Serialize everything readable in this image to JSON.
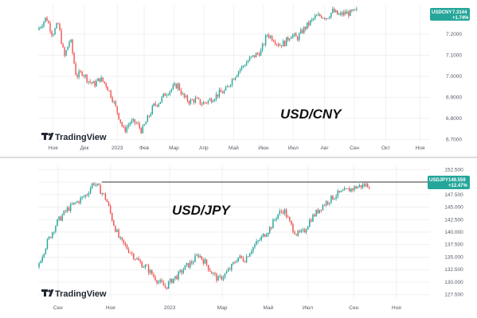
{
  "colors": {
    "up": "#26a69a",
    "down": "#ef5350",
    "badge": "#26a69a",
    "grid": "#f0f1f3",
    "level_line": "#333333"
  },
  "branding": {
    "label": "TradingView",
    "icon": "tradingview-logo-icon"
  },
  "chart_data": [
    {
      "type": "candlestick",
      "title": "USD/CNY",
      "symbol": "USDCNY",
      "last_price": "7.3144",
      "change_pct": "+1.74%",
      "y_ticks": [
        "7.2000",
        "7.1000",
        "7.0000",
        "6.9000",
        "6.8000",
        "6.7000"
      ],
      "ylim": [
        6.69,
        7.34
      ],
      "x_ticks": [
        "Ноя",
        "Дек",
        "2023",
        "Фев",
        "Мар",
        "Апр",
        "Май",
        "Июн",
        "Июл",
        "Авг",
        "Сен",
        "Окт",
        "Ноя"
      ],
      "x_tick_pos": [
        0.05,
        0.155,
        0.265,
        0.355,
        0.455,
        0.555,
        0.655,
        0.755,
        0.855,
        0.96,
        1.06,
        1.165,
        1.28
      ],
      "close_path": [
        [
          0.0,
          7.22
        ],
        [
          0.03,
          7.28
        ],
        [
          0.05,
          7.2
        ],
        [
          0.07,
          7.25
        ],
        [
          0.09,
          7.09
        ],
        [
          0.11,
          7.18
        ],
        [
          0.13,
          7.0
        ],
        [
          0.15,
          7.02
        ],
        [
          0.17,
          6.98
        ],
        [
          0.19,
          6.96
        ],
        [
          0.21,
          6.99
        ],
        [
          0.23,
          6.96
        ],
        [
          0.25,
          6.9
        ],
        [
          0.27,
          6.82
        ],
        [
          0.29,
          6.74
        ],
        [
          0.31,
          6.78
        ],
        [
          0.33,
          6.78
        ],
        [
          0.35,
          6.74
        ],
        [
          0.37,
          6.8
        ],
        [
          0.39,
          6.86
        ],
        [
          0.41,
          6.88
        ],
        [
          0.43,
          6.92
        ],
        [
          0.45,
          6.94
        ],
        [
          0.47,
          6.96
        ],
        [
          0.49,
          6.9
        ],
        [
          0.51,
          6.88
        ],
        [
          0.53,
          6.89
        ],
        [
          0.55,
          6.87
        ],
        [
          0.57,
          6.88
        ],
        [
          0.59,
          6.9
        ],
        [
          0.61,
          6.92
        ],
        [
          0.63,
          6.93
        ],
        [
          0.65,
          6.98
        ],
        [
          0.67,
          7.02
        ],
        [
          0.69,
          7.05
        ],
        [
          0.71,
          7.08
        ],
        [
          0.73,
          7.1
        ],
        [
          0.75,
          7.12
        ],
        [
          0.77,
          7.2
        ],
        [
          0.79,
          7.18
        ],
        [
          0.81,
          7.15
        ],
        [
          0.83,
          7.16
        ],
        [
          0.85,
          7.2
        ],
        [
          0.87,
          7.18
        ],
        [
          0.89,
          7.22
        ],
        [
          0.91,
          7.25
        ],
        [
          0.93,
          7.28
        ],
        [
          0.95,
          7.29
        ],
        [
          0.97,
          7.28
        ],
        [
          0.99,
          7.31
        ],
        [
          1.01,
          7.29
        ],
        [
          1.03,
          7.3
        ],
        [
          1.05,
          7.3
        ],
        [
          1.07,
          7.31
        ]
      ]
    },
    {
      "type": "candlestick",
      "title": "USD/JPY",
      "symbol": "USDJPY",
      "last_price": "149.559",
      "change_pct": "+12.47%",
      "y_ticks": [
        "152.500",
        "150.000",
        "147.500",
        "145.000",
        "142.500",
        "140.000",
        "137.500",
        "135.000",
        "132.500",
        "130.000",
        "127.500"
      ],
      "ylim": [
        126.5,
        153.5
      ],
      "level_line": 150.0,
      "x_ticks": [
        "Сен",
        "Ноя",
        "2023",
        "Мар",
        "Май",
        "Июл",
        "Сен",
        "Ноя"
      ],
      "x_tick_pos": [
        0.06,
        0.22,
        0.4,
        0.56,
        0.7,
        0.82,
        0.96,
        1.09
      ],
      "close_path": [
        [
          0.0,
          133.0
        ],
        [
          0.03,
          138.0
        ],
        [
          0.06,
          142.0
        ],
        [
          0.09,
          144.5
        ],
        [
          0.12,
          146.0
        ],
        [
          0.15,
          147.5
        ],
        [
          0.17,
          150.0
        ],
        [
          0.19,
          148.5
        ],
        [
          0.21,
          146.5
        ],
        [
          0.23,
          142.0
        ],
        [
          0.25,
          138.5
        ],
        [
          0.27,
          137.0
        ],
        [
          0.29,
          135.5
        ],
        [
          0.31,
          134.0
        ],
        [
          0.33,
          133.0
        ],
        [
          0.35,
          131.5
        ],
        [
          0.37,
          130.0
        ],
        [
          0.39,
          129.0
        ],
        [
          0.41,
          130.5
        ],
        [
          0.43,
          131.5
        ],
        [
          0.45,
          133.0
        ],
        [
          0.47,
          134.0
        ],
        [
          0.49,
          135.5
        ],
        [
          0.51,
          134.0
        ],
        [
          0.53,
          132.0
        ],
        [
          0.55,
          130.5
        ],
        [
          0.57,
          131.5
        ],
        [
          0.59,
          133.0
        ],
        [
          0.61,
          135.0
        ],
        [
          0.63,
          134.5
        ],
        [
          0.65,
          136.5
        ],
        [
          0.67,
          138.0
        ],
        [
          0.69,
          139.5
        ],
        [
          0.71,
          141.0
        ],
        [
          0.73,
          143.5
        ],
        [
          0.75,
          144.5
        ],
        [
          0.77,
          141.5
        ],
        [
          0.79,
          139.5
        ],
        [
          0.81,
          140.0
        ],
        [
          0.83,
          142.5
        ],
        [
          0.85,
          144.0
        ],
        [
          0.87,
          145.5
        ],
        [
          0.89,
          146.5
        ],
        [
          0.91,
          147.5
        ],
        [
          0.93,
          148.0
        ],
        [
          0.95,
          148.5
        ],
        [
          0.97,
          149.0
        ],
        [
          0.99,
          149.3
        ],
        [
          1.01,
          149.5
        ]
      ]
    }
  ]
}
